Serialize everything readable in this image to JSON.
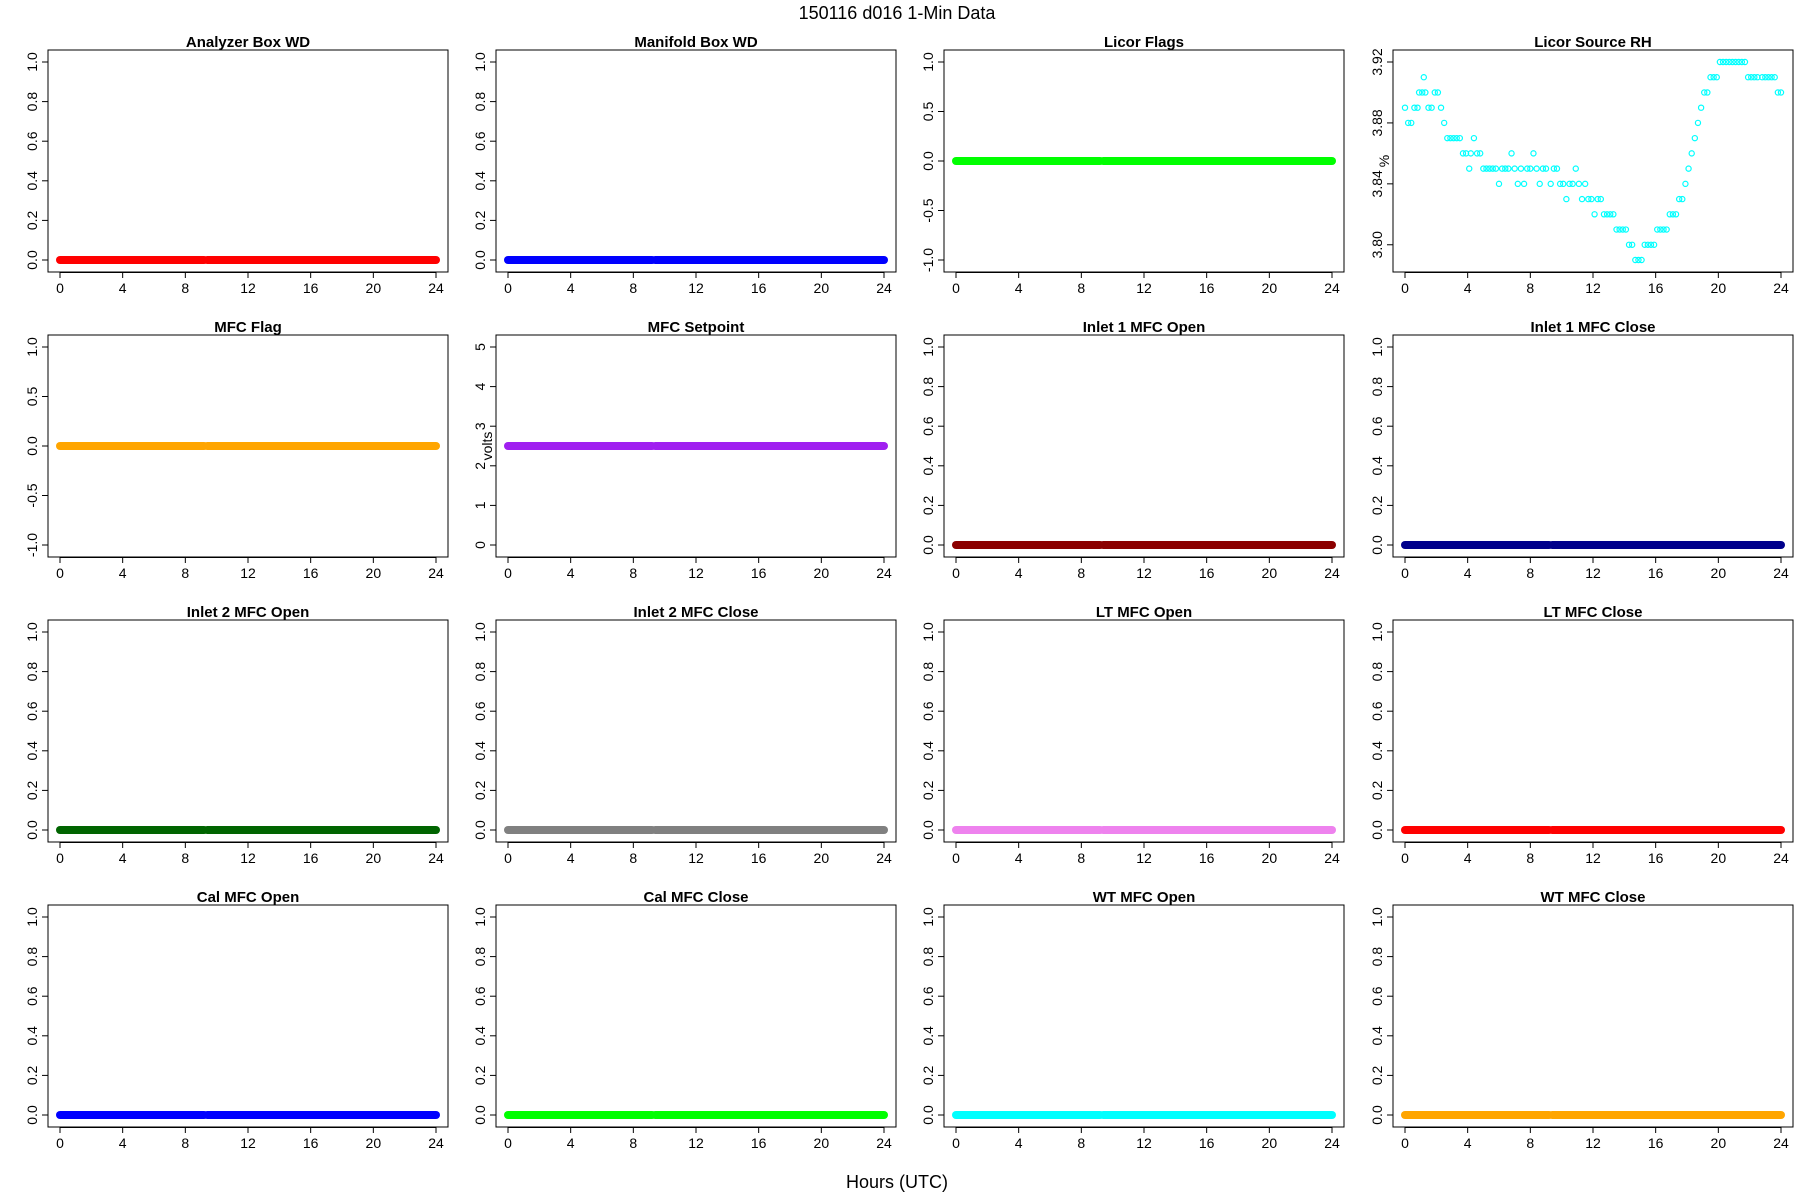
{
  "figure": {
    "title": "150116   d016   1-Min Data",
    "xlabel": "Hours (UTC)"
  },
  "chart_data": [
    {
      "title": "Analyzer Box WD",
      "type": "scatter",
      "color": "#ff0000",
      "ylabel": "",
      "ylim": [
        0,
        1
      ],
      "yticks": [
        "0.0",
        "0.2",
        "0.4",
        "0.6",
        "0.8",
        "1.0"
      ],
      "xticks": [
        0,
        4,
        8,
        12,
        16,
        20,
        24
      ],
      "xlim": [
        0,
        24
      ],
      "segments": [
        {
          "x": [
            0,
            9.2
          ],
          "y": 0
        },
        {
          "x": [
            9.4,
            24
          ],
          "y": 0
        }
      ]
    },
    {
      "title": "Manifold Box WD",
      "type": "scatter",
      "color": "#0000ff",
      "ylabel": "",
      "ylim": [
        0,
        1
      ],
      "yticks": [
        "0.0",
        "0.2",
        "0.4",
        "0.6",
        "0.8",
        "1.0"
      ],
      "xticks": [
        0,
        4,
        8,
        12,
        16,
        20,
        24
      ],
      "xlim": [
        0,
        24
      ],
      "segments": [
        {
          "x": [
            0,
            9.2
          ],
          "y": 0
        },
        {
          "x": [
            9.4,
            24
          ],
          "y": 0
        }
      ]
    },
    {
      "title": "Licor Flags",
      "type": "scatter",
      "color": "#00ff00",
      "ylabel": "",
      "ylim": [
        -1,
        1
      ],
      "yticks": [
        "-1.0",
        "-0.5",
        "0.0",
        "0.5",
        "1.0"
      ],
      "xticks": [
        0,
        4,
        8,
        12,
        16,
        20,
        24
      ],
      "xlim": [
        0,
        24
      ],
      "segments": [
        {
          "x": [
            0,
            9.2
          ],
          "y": 0
        },
        {
          "x": [
            9.4,
            24
          ],
          "y": 0
        }
      ]
    },
    {
      "title": "Licor Source RH",
      "type": "scatter",
      "color": "#00ffff",
      "ylabel": "%",
      "ylim": [
        3.79,
        3.92
      ],
      "yticks": [
        "3.80",
        "3.84",
        "3.88",
        "3.92"
      ],
      "xticks": [
        0,
        4,
        8,
        12,
        16,
        20,
        24
      ],
      "xlim": [
        0,
        24
      ],
      "points": [
        [
          0,
          3.89
        ],
        [
          0.2,
          3.88
        ],
        [
          0.4,
          3.88
        ],
        [
          0.6,
          3.89
        ],
        [
          0.8,
          3.89
        ],
        [
          0.9,
          3.9
        ],
        [
          1.1,
          3.9
        ],
        [
          1.2,
          3.91
        ],
        [
          1.3,
          3.9
        ],
        [
          1.5,
          3.89
        ],
        [
          1.7,
          3.89
        ],
        [
          1.9,
          3.9
        ],
        [
          2.1,
          3.9
        ],
        [
          2.3,
          3.89
        ],
        [
          2.5,
          3.88
        ],
        [
          2.7,
          3.87
        ],
        [
          2.9,
          3.87
        ],
        [
          3.1,
          3.87
        ],
        [
          3.3,
          3.87
        ],
        [
          3.5,
          3.87
        ],
        [
          3.7,
          3.86
        ],
        [
          3.9,
          3.86
        ],
        [
          4.1,
          3.85
        ],
        [
          4.2,
          3.86
        ],
        [
          4.4,
          3.87
        ],
        [
          4.6,
          3.86
        ],
        [
          4.8,
          3.86
        ],
        [
          5.0,
          3.85
        ],
        [
          5.2,
          3.85
        ],
        [
          5.4,
          3.85
        ],
        [
          5.6,
          3.85
        ],
        [
          5.8,
          3.85
        ],
        [
          6.0,
          3.84
        ],
        [
          6.2,
          3.85
        ],
        [
          6.4,
          3.85
        ],
        [
          6.6,
          3.85
        ],
        [
          6.8,
          3.86
        ],
        [
          7.0,
          3.85
        ],
        [
          7.2,
          3.84
        ],
        [
          7.4,
          3.85
        ],
        [
          7.6,
          3.84
        ],
        [
          7.8,
          3.85
        ],
        [
          8.0,
          3.85
        ],
        [
          8.2,
          3.86
        ],
        [
          8.4,
          3.85
        ],
        [
          8.6,
          3.84
        ],
        [
          8.8,
          3.85
        ],
        [
          9.0,
          3.85
        ],
        [
          9.3,
          3.84
        ],
        [
          9.5,
          3.85
        ],
        [
          9.7,
          3.85
        ],
        [
          9.9,
          3.84
        ],
        [
          10.1,
          3.84
        ],
        [
          10.3,
          3.83
        ],
        [
          10.5,
          3.84
        ],
        [
          10.7,
          3.84
        ],
        [
          10.9,
          3.85
        ],
        [
          11.1,
          3.84
        ],
        [
          11.3,
          3.83
        ],
        [
          11.5,
          3.84
        ],
        [
          11.7,
          3.83
        ],
        [
          11.9,
          3.83
        ],
        [
          12.1,
          3.82
        ],
        [
          12.3,
          3.83
        ],
        [
          12.5,
          3.83
        ],
        [
          12.7,
          3.82
        ],
        [
          12.9,
          3.82
        ],
        [
          13.1,
          3.82
        ],
        [
          13.3,
          3.82
        ],
        [
          13.5,
          3.81
        ],
        [
          13.7,
          3.81
        ],
        [
          13.9,
          3.81
        ],
        [
          14.1,
          3.81
        ],
        [
          14.3,
          3.8
        ],
        [
          14.5,
          3.8
        ],
        [
          14.7,
          3.79
        ],
        [
          14.9,
          3.79
        ],
        [
          15.1,
          3.79
        ],
        [
          15.3,
          3.8
        ],
        [
          15.5,
          3.8
        ],
        [
          15.7,
          3.8
        ],
        [
          15.9,
          3.8
        ],
        [
          16.1,
          3.81
        ],
        [
          16.3,
          3.81
        ],
        [
          16.5,
          3.81
        ],
        [
          16.7,
          3.81
        ],
        [
          16.9,
          3.82
        ],
        [
          17.1,
          3.82
        ],
        [
          17.3,
          3.82
        ],
        [
          17.5,
          3.83
        ],
        [
          17.7,
          3.83
        ],
        [
          17.9,
          3.84
        ],
        [
          18.1,
          3.85
        ],
        [
          18.3,
          3.86
        ],
        [
          18.5,
          3.87
        ],
        [
          18.7,
          3.88
        ],
        [
          18.9,
          3.89
        ],
        [
          19.1,
          3.9
        ],
        [
          19.3,
          3.9
        ],
        [
          19.5,
          3.91
        ],
        [
          19.7,
          3.91
        ],
        [
          19.9,
          3.91
        ],
        [
          20.1,
          3.92
        ],
        [
          20.3,
          3.92
        ],
        [
          20.5,
          3.92
        ],
        [
          20.7,
          3.92
        ],
        [
          20.9,
          3.92
        ],
        [
          21.1,
          3.92
        ],
        [
          21.3,
          3.92
        ],
        [
          21.5,
          3.92
        ],
        [
          21.7,
          3.92
        ],
        [
          21.9,
          3.91
        ],
        [
          22.1,
          3.91
        ],
        [
          22.3,
          3.91
        ],
        [
          22.5,
          3.91
        ],
        [
          22.8,
          3.91
        ],
        [
          23.0,
          3.91
        ],
        [
          23.2,
          3.91
        ],
        [
          23.4,
          3.91
        ],
        [
          23.6,
          3.91
        ],
        [
          23.8,
          3.9
        ],
        [
          24.0,
          3.9
        ]
      ]
    },
    {
      "title": "MFC Flag",
      "type": "scatter",
      "color": "#ffa500",
      "ylabel": "",
      "ylim": [
        -1,
        1
      ],
      "yticks": [
        "-1.0",
        "-0.5",
        "0.0",
        "0.5",
        "1.0"
      ],
      "xticks": [
        0,
        4,
        8,
        12,
        16,
        20,
        24
      ],
      "xlim": [
        0,
        24
      ],
      "segments": [
        {
          "x": [
            0,
            9.2
          ],
          "y": 0
        },
        {
          "x": [
            9.4,
            24
          ],
          "y": 0
        }
      ]
    },
    {
      "title": "MFC Setpoint",
      "type": "scatter",
      "color": "#a020f0",
      "ylabel": "volts",
      "ylim": [
        0,
        5
      ],
      "yticks": [
        "0",
        "1",
        "2",
        "3",
        "4",
        "5"
      ],
      "xticks": [
        0,
        4,
        8,
        12,
        16,
        20,
        24
      ],
      "xlim": [
        0,
        24
      ],
      "segments": [
        {
          "x": [
            0,
            9.2
          ],
          "y": 2.5
        },
        {
          "x": [
            9.4,
            24
          ],
          "y": 2.5
        }
      ]
    },
    {
      "title": "Inlet 1 MFC Open",
      "type": "scatter",
      "color": "#8b0000",
      "ylabel": "",
      "ylim": [
        0,
        1
      ],
      "yticks": [
        "0.0",
        "0.2",
        "0.4",
        "0.6",
        "0.8",
        "1.0"
      ],
      "xticks": [
        0,
        4,
        8,
        12,
        16,
        20,
        24
      ],
      "xlim": [
        0,
        24
      ],
      "segments": [
        {
          "x": [
            0,
            9.2
          ],
          "y": 0
        },
        {
          "x": [
            9.4,
            24
          ],
          "y": 0
        }
      ]
    },
    {
      "title": "Inlet 1 MFC Close",
      "type": "scatter",
      "color": "#00008b",
      "ylabel": "",
      "ylim": [
        0,
        1
      ],
      "yticks": [
        "0.0",
        "0.2",
        "0.4",
        "0.6",
        "0.8",
        "1.0"
      ],
      "xticks": [
        0,
        4,
        8,
        12,
        16,
        20,
        24
      ],
      "xlim": [
        0,
        24
      ],
      "segments": [
        {
          "x": [
            0,
            9.2
          ],
          "y": 0
        },
        {
          "x": [
            9.4,
            24
          ],
          "y": 0
        }
      ]
    },
    {
      "title": "Inlet 2 MFC Open",
      "type": "scatter",
      "color": "#006400",
      "ylabel": "",
      "ylim": [
        0,
        1
      ],
      "yticks": [
        "0.0",
        "0.2",
        "0.4",
        "0.6",
        "0.8",
        "1.0"
      ],
      "xticks": [
        0,
        4,
        8,
        12,
        16,
        20,
        24
      ],
      "xlim": [
        0,
        24
      ],
      "segments": [
        {
          "x": [
            0,
            9.2
          ],
          "y": 0
        },
        {
          "x": [
            9.4,
            24
          ],
          "y": 0
        }
      ]
    },
    {
      "title": "Inlet 2 MFC Close",
      "type": "scatter",
      "color": "#808080",
      "ylabel": "",
      "ylim": [
        0,
        1
      ],
      "yticks": [
        "0.0",
        "0.2",
        "0.4",
        "0.6",
        "0.8",
        "1.0"
      ],
      "xticks": [
        0,
        4,
        8,
        12,
        16,
        20,
        24
      ],
      "xlim": [
        0,
        24
      ],
      "segments": [
        {
          "x": [
            0,
            9.2
          ],
          "y": 0
        },
        {
          "x": [
            9.4,
            24
          ],
          "y": 0
        }
      ]
    },
    {
      "title": "LT MFC Open",
      "type": "scatter",
      "color": "#ee82ee",
      "ylabel": "",
      "ylim": [
        0,
        1
      ],
      "yticks": [
        "0.0",
        "0.2",
        "0.4",
        "0.6",
        "0.8",
        "1.0"
      ],
      "xticks": [
        0,
        4,
        8,
        12,
        16,
        20,
        24
      ],
      "xlim": [
        0,
        24
      ],
      "segments": [
        {
          "x": [
            0,
            9.2
          ],
          "y": 0
        },
        {
          "x": [
            9.4,
            24
          ],
          "y": 0
        }
      ]
    },
    {
      "title": "LT MFC Close",
      "type": "scatter",
      "color": "#ff0000",
      "ylabel": "",
      "ylim": [
        0,
        1
      ],
      "yticks": [
        "0.0",
        "0.2",
        "0.4",
        "0.6",
        "0.8",
        "1.0"
      ],
      "xticks": [
        0,
        4,
        8,
        12,
        16,
        20,
        24
      ],
      "xlim": [
        0,
        24
      ],
      "segments": [
        {
          "x": [
            0,
            9.2
          ],
          "y": 0
        },
        {
          "x": [
            9.4,
            24
          ],
          "y": 0
        }
      ]
    },
    {
      "title": "Cal MFC Open",
      "type": "scatter",
      "color": "#0000ff",
      "ylabel": "",
      "ylim": [
        0,
        1
      ],
      "yticks": [
        "0.0",
        "0.2",
        "0.4",
        "0.6",
        "0.8",
        "1.0"
      ],
      "xticks": [
        0,
        4,
        8,
        12,
        16,
        20,
        24
      ],
      "xlim": [
        0,
        24
      ],
      "segments": [
        {
          "x": [
            0,
            9.2
          ],
          "y": 0
        },
        {
          "x": [
            9.4,
            24
          ],
          "y": 0
        }
      ]
    },
    {
      "title": "Cal MFC Close",
      "type": "scatter",
      "color": "#00ff00",
      "ylabel": "",
      "ylim": [
        0,
        1
      ],
      "yticks": [
        "0.0",
        "0.2",
        "0.4",
        "0.6",
        "0.8",
        "1.0"
      ],
      "xticks": [
        0,
        4,
        8,
        12,
        16,
        20,
        24
      ],
      "xlim": [
        0,
        24
      ],
      "segments": [
        {
          "x": [
            0,
            9.2
          ],
          "y": 0
        },
        {
          "x": [
            9.4,
            24
          ],
          "y": 0
        }
      ]
    },
    {
      "title": "WT MFC Open",
      "type": "scatter",
      "color": "#00ffff",
      "ylabel": "",
      "ylim": [
        0,
        1
      ],
      "yticks": [
        "0.0",
        "0.2",
        "0.4",
        "0.6",
        "0.8",
        "1.0"
      ],
      "xticks": [
        0,
        4,
        8,
        12,
        16,
        20,
        24
      ],
      "xlim": [
        0,
        24
      ],
      "segments": [
        {
          "x": [
            0,
            9.2
          ],
          "y": 0
        },
        {
          "x": [
            9.4,
            24
          ],
          "y": 0
        }
      ]
    },
    {
      "title": "WT MFC Close",
      "type": "scatter",
      "color": "#ffa500",
      "ylabel": "",
      "ylim": [
        0,
        1
      ],
      "yticks": [
        "0.0",
        "0.2",
        "0.4",
        "0.6",
        "0.8",
        "1.0"
      ],
      "xticks": [
        0,
        4,
        8,
        12,
        16,
        20,
        24
      ],
      "xlim": [
        0,
        24
      ],
      "segments": [
        {
          "x": [
            0,
            9.2
          ],
          "y": 0
        },
        {
          "x": [
            9.4,
            24
          ],
          "y": 0
        }
      ]
    }
  ]
}
